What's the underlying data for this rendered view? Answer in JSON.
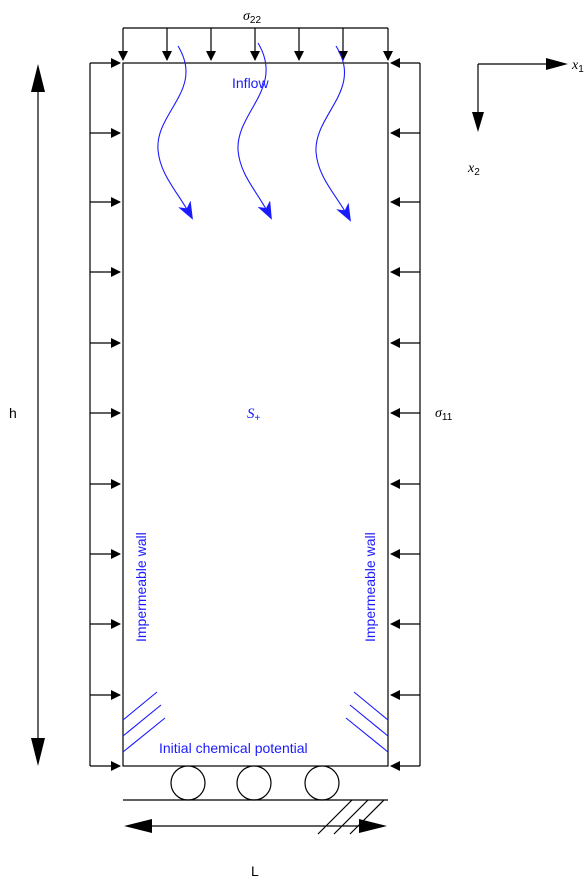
{
  "labels": {
    "sigma22_main": "σ",
    "sigma22_sub": "22",
    "sigma11_main": "σ",
    "sigma11_sub": "11",
    "x1_main": "x",
    "x1_sub": "1",
    "x2_main": "x",
    "x2_sub": "2",
    "h": "h",
    "L": "L",
    "s_main": "S",
    "s_sub": "+",
    "inflow": "Inflow",
    "left_wall": "Impermeable  wall",
    "right_wall": "Impermeable  wall",
    "bottom": "Initial  chemical  potential"
  },
  "colors": {
    "line": "#000000",
    "annotation": "#1a1aff"
  }
}
